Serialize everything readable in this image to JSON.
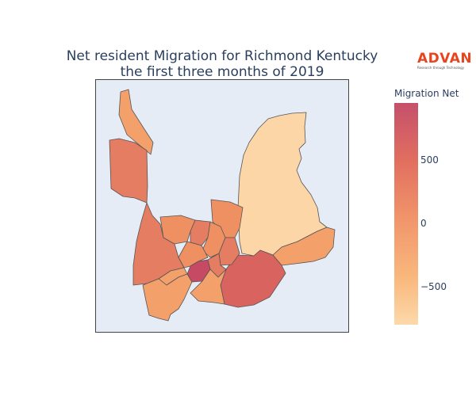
{
  "title": {
    "line1": "Net resident Migration for Richmond Kentucky",
    "line2": "the first three months of 2019"
  },
  "logo": {
    "word": "ADVAN",
    "tagline": "Research through Technology"
  },
  "colorbar": {
    "title": "Migration Net",
    "ticks": [
      "500",
      "0",
      "−500"
    ],
    "colors": [
      "#c5506b",
      "#e2705f",
      "#f1966b",
      "#f9b87d",
      "#fcd9aa"
    ]
  },
  "map": {
    "background": "#e5ecf6",
    "region_fill_colors": {
      "highest": "#c74a65",
      "high": "#d9635e",
      "mid_high": "#e57d62",
      "mid": "#ef9062",
      "mid_low": "#f3a06a",
      "low": "#fcd6a7"
    }
  }
}
